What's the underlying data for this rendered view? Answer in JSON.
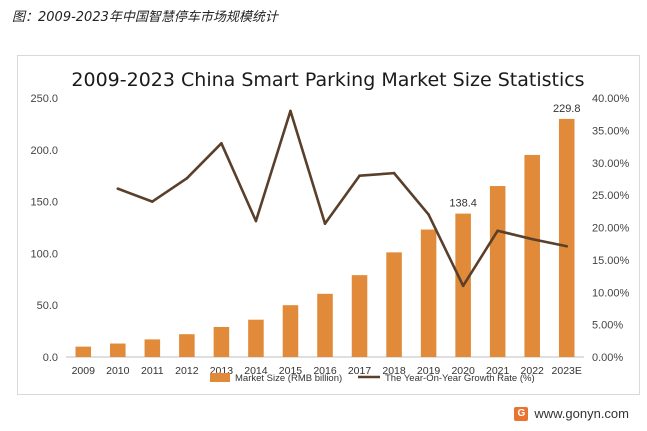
{
  "caption": "图：2009-2023年中国智慧停车市场规模统计",
  "brand": {
    "text": "www.gonyn.com"
  },
  "chart_data": {
    "type": "bar",
    "title": "2009-2023 China Smart Parking Market Size Statistics",
    "categories": [
      "2009",
      "2010",
      "2011",
      "2012",
      "2013",
      "2014",
      "2015",
      "2016",
      "2017",
      "2018",
      "2019",
      "2020",
      "2021",
      "2022",
      "2023E"
    ],
    "series": [
      {
        "name": "Market Size (RMB billion)",
        "type": "bar",
        "axis": "left",
        "color": "#e08a3a",
        "values": [
          10,
          13,
          17,
          22,
          29,
          36,
          50,
          61,
          79,
          101,
          123,
          138.4,
          165,
          195,
          229.8
        ]
      },
      {
        "name": "The Year-On-Year Growth Rate (%)",
        "type": "line",
        "axis": "right",
        "color": "#5a3f2a",
        "values": [
          null,
          26,
          24,
          27.6,
          33,
          21,
          38,
          20.6,
          28,
          28.4,
          22,
          11,
          19.5,
          18.2,
          17.1
        ]
      }
    ],
    "y_left": {
      "ylim": [
        0,
        250
      ],
      "ticks": [
        "0.0",
        "50.0",
        "100.0",
        "150.0",
        "200.0",
        "250.0"
      ]
    },
    "y_right": {
      "ylim": [
        0,
        40
      ],
      "ticks": [
        "0.00%",
        "5.00%",
        "10.00%",
        "15.00%",
        "20.00%",
        "25.00%",
        "30.00%",
        "35.00%",
        "40.00%"
      ]
    },
    "data_labels": [
      {
        "index": 11,
        "text": "138.4"
      },
      {
        "index": 14,
        "text": "229.8"
      }
    ],
    "legend_position": "bottom",
    "grid": false
  }
}
